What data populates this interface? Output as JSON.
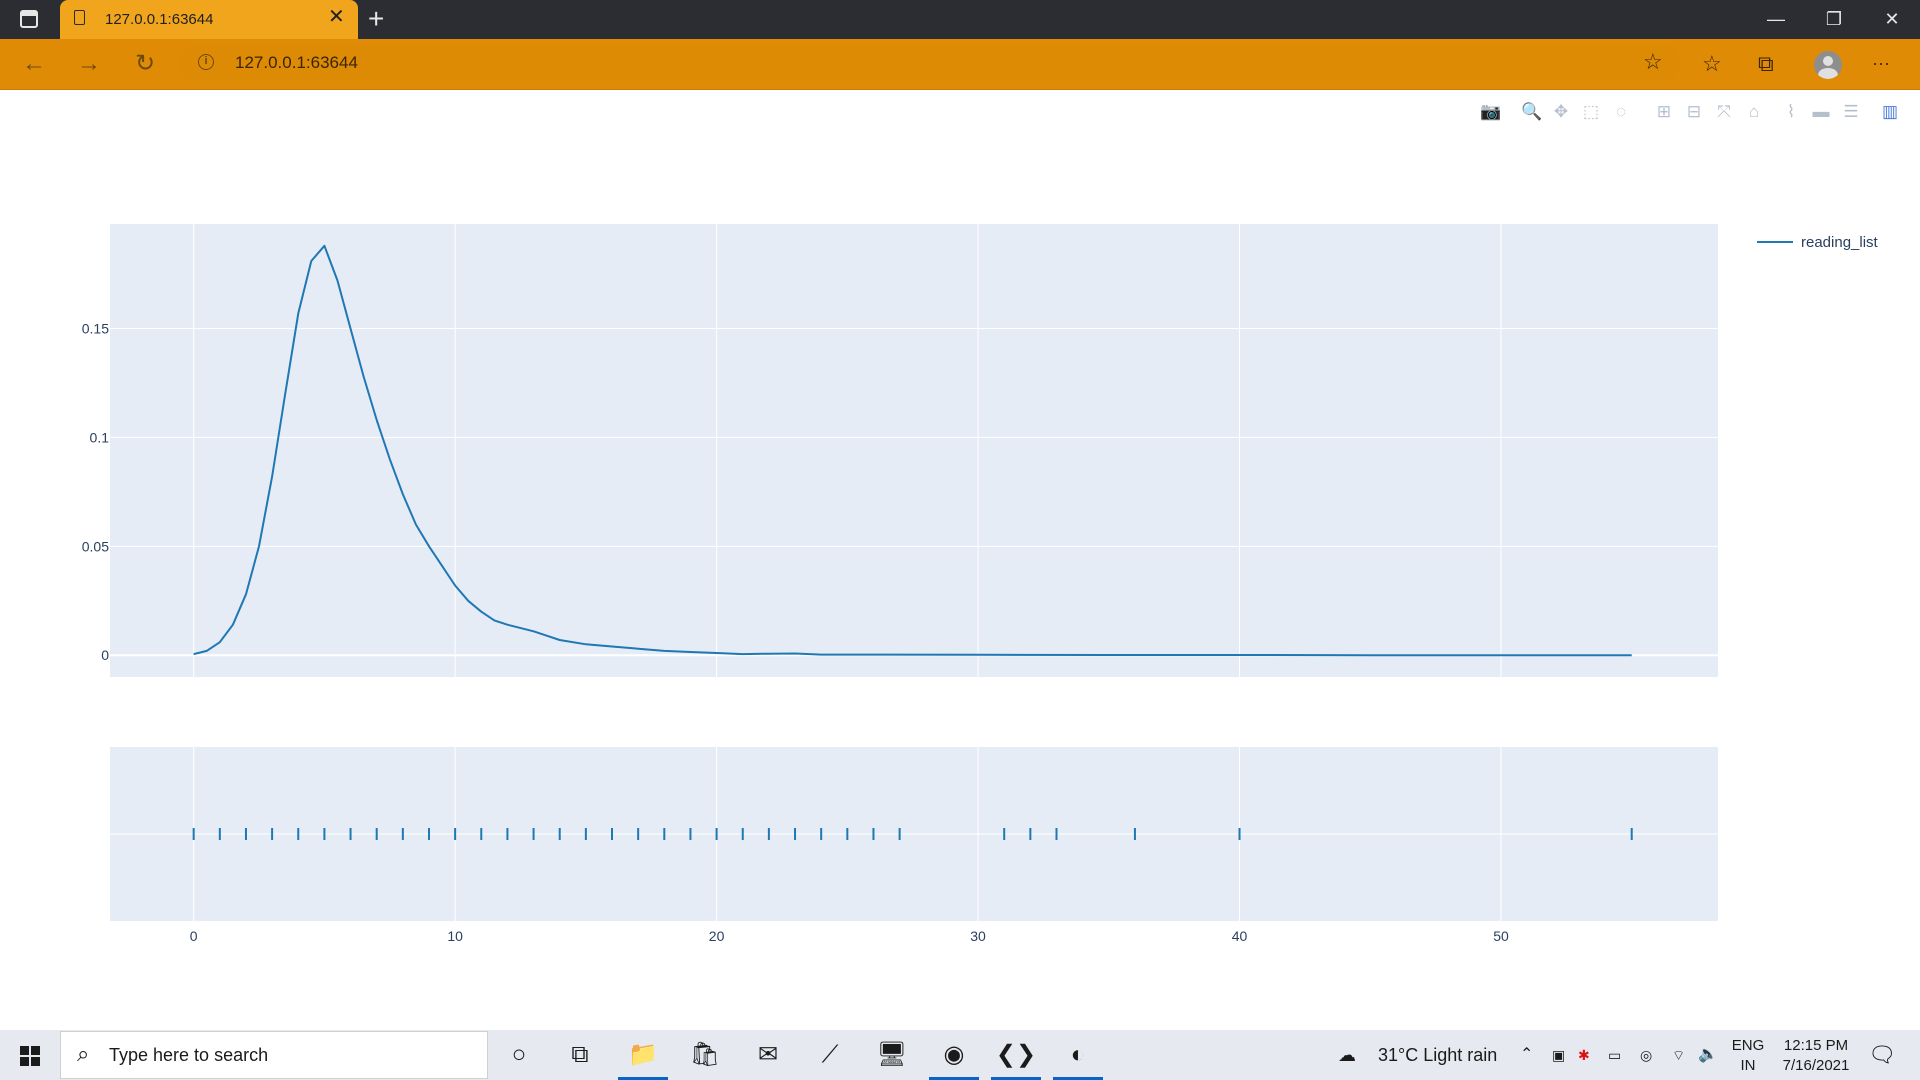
{
  "browser": {
    "tab_title": "127.0.0.1:63644",
    "url": "127.0.0.1:63644",
    "icons": {
      "tab_page": "page-icon",
      "tab_close": "close-icon",
      "new_tab": "plus-icon",
      "minimize": "minimize-icon",
      "restore": "restore-icon",
      "close_window": "close-icon",
      "back": "arrow-left-icon",
      "forward": "arrow-right-icon",
      "refresh": "refresh-icon",
      "site_info": "info-icon",
      "add_favorite": "star-plus-icon",
      "favorites": "favorites-icon",
      "collections": "collections-icon",
      "profile": "avatar-icon",
      "more": "more-icon"
    },
    "glyphs": {
      "tab_close": "✕",
      "new_tab": "+",
      "minimize": "—",
      "restore": "❐",
      "close_window": "✕",
      "back": "←",
      "forward": "→",
      "refresh": "↻",
      "site_info": "i",
      "add_favorite": "☆",
      "favorites": "☆",
      "collections": "⧉",
      "more": "···"
    },
    "accent_color": "#e08b06",
    "tab_color": "#f0a51d",
    "titlebar_color": "#2b2d33"
  },
  "modebar": {
    "buttons": [
      {
        "name": "camera-icon",
        "glyph": "📷"
      },
      {
        "name": "zoom-icon",
        "glyph": "🔍"
      },
      {
        "name": "pan-icon",
        "glyph": "✥"
      },
      {
        "name": "box-select-icon",
        "glyph": "⬚"
      },
      {
        "name": "lasso-icon",
        "glyph": "◌"
      },
      {
        "name": "zoom-in-icon",
        "glyph": "⊞"
      },
      {
        "name": "zoom-out-icon",
        "glyph": "⊟"
      },
      {
        "name": "autoscale-icon",
        "glyph": "⤧"
      },
      {
        "name": "reset-axes-icon",
        "glyph": "⌂"
      },
      {
        "name": "spike-lines-icon",
        "glyph": "⌇"
      },
      {
        "name": "hover-closest-icon",
        "glyph": "▬"
      },
      {
        "name": "hover-compare-icon",
        "glyph": "☰"
      },
      {
        "name": "plotly-logo-icon",
        "glyph": "▥"
      }
    ]
  },
  "chart_data": {
    "type": "line",
    "title": "",
    "xlabel": "",
    "ylabel": "",
    "xlim": [
      -3.2,
      58.3
    ],
    "ylim": [
      -0.01,
      0.198
    ],
    "x_ticks": [
      0,
      10,
      20,
      30,
      40,
      50
    ],
    "y_ticks": [
      0,
      0.05,
      0.1,
      0.15
    ],
    "y_tick_labels": [
      "0",
      "0.05",
      "0.1",
      "0.15"
    ],
    "grid": true,
    "legend": {
      "placement": "top-right",
      "entries": [
        "reading_list"
      ]
    },
    "series": [
      {
        "name": "reading_list",
        "color": "#1f77b4",
        "x": [
          0,
          0.5,
          1,
          1.5,
          2,
          2.5,
          3,
          3.5,
          4,
          4.5,
          5,
          5.5,
          6,
          6.5,
          7,
          7.5,
          8,
          8.5,
          9,
          9.5,
          10,
          10.5,
          11,
          11.5,
          12,
          13,
          14,
          15,
          16,
          17,
          18,
          19,
          20,
          21,
          22,
          23,
          24,
          25,
          30,
          35,
          40,
          45,
          50,
          55
        ],
        "y": [
          0.0005,
          0.002,
          0.006,
          0.014,
          0.028,
          0.05,
          0.082,
          0.12,
          0.157,
          0.181,
          0.188,
          0.172,
          0.15,
          0.128,
          0.108,
          0.09,
          0.074,
          0.06,
          0.05,
          0.041,
          0.032,
          0.025,
          0.02,
          0.016,
          0.014,
          0.011,
          0.007,
          0.005,
          0.004,
          0.003,
          0.002,
          0.0015,
          0.001,
          0.0005,
          0.0007,
          0.0008,
          0.0003,
          0.0003,
          0.0002,
          0.0001,
          0.0001,
          0.0,
          0.0,
          0.0
        ]
      }
    ],
    "rug": {
      "x": [
        0,
        1,
        2,
        3,
        4,
        5,
        6,
        7,
        8,
        9,
        10,
        11,
        12,
        13,
        14,
        15,
        16,
        17,
        18,
        19,
        20,
        21,
        22,
        23,
        24,
        25,
        26,
        27,
        31,
        32,
        33,
        36,
        40,
        55
      ],
      "color": "#1f77b4"
    },
    "plot_bg": "#e5ecf6",
    "grid_color": "#ffffff"
  },
  "taskbar": {
    "search_placeholder": "Type here to search",
    "apps": [
      {
        "name": "cortana-icon",
        "glyph": "○",
        "active": false
      },
      {
        "name": "task-view-icon",
        "glyph": "⧉",
        "active": false
      },
      {
        "name": "file-explorer-icon",
        "glyph": "📁",
        "active": true
      },
      {
        "name": "store-icon",
        "glyph": "🛍",
        "active": false
      },
      {
        "name": "mail-icon",
        "glyph": "✉",
        "active": false
      },
      {
        "name": "ide-icon",
        "glyph": "⟋",
        "active": false
      },
      {
        "name": "computer-icon",
        "glyph": "🖥",
        "active": false
      },
      {
        "name": "chrome-icon",
        "glyph": "◉",
        "active": true
      },
      {
        "name": "vscode-icon",
        "glyph": "❮❯",
        "active": true
      },
      {
        "name": "edge-icon",
        "glyph": "◐",
        "active": true
      }
    ],
    "weather": "31°C  Light rain",
    "language_top": "ENG",
    "language_bottom": "IN",
    "time": "12:15 PM",
    "date": "7/16/2021"
  }
}
